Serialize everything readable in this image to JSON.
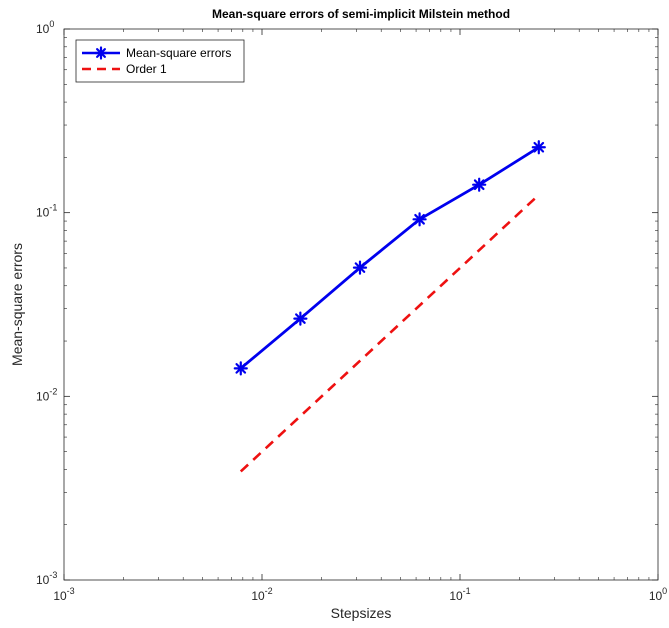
{
  "chart_data": {
    "type": "line",
    "title": "Mean-square errors of semi-implicit Milstein method",
    "xlabel": "Stepsizes",
    "ylabel": "Mean-square errors",
    "xscale": "log",
    "yscale": "log",
    "xlim": [
      0.001,
      1
    ],
    "ylim": [
      0.001,
      1
    ],
    "xticks": [
      {
        "value": 0.001,
        "base": "10",
        "exp": "-3"
      },
      {
        "value": 0.01,
        "base": "10",
        "exp": "-2"
      },
      {
        "value": 0.1,
        "base": "10",
        "exp": "-1"
      },
      {
        "value": 1,
        "base": "10",
        "exp": "0"
      }
    ],
    "yticks": [
      {
        "value": 0.001,
        "base": "10",
        "exp": "-3"
      },
      {
        "value": 0.01,
        "base": "10",
        "exp": "-2"
      },
      {
        "value": 0.1,
        "base": "10",
        "exp": "-1"
      },
      {
        "value": 1,
        "base": "10",
        "exp": "0"
      }
    ],
    "grid": false,
    "legend_position": "top-left",
    "series": [
      {
        "name": "Mean-square errors",
        "color": "#0000ee",
        "line_style": "solid",
        "marker": "asterisk",
        "x": [
          0.0078125,
          0.015625,
          0.03125,
          0.0625,
          0.125,
          0.25
        ],
        "y": [
          0.0142,
          0.0265,
          0.0502,
          0.092,
          0.142,
          0.227
        ]
      },
      {
        "name": "Order 1",
        "color": "#ee1111",
        "line_style": "dashed",
        "marker": "none",
        "x": [
          0.0078125,
          0.25
        ],
        "y": [
          0.0039,
          0.125
        ]
      }
    ]
  }
}
